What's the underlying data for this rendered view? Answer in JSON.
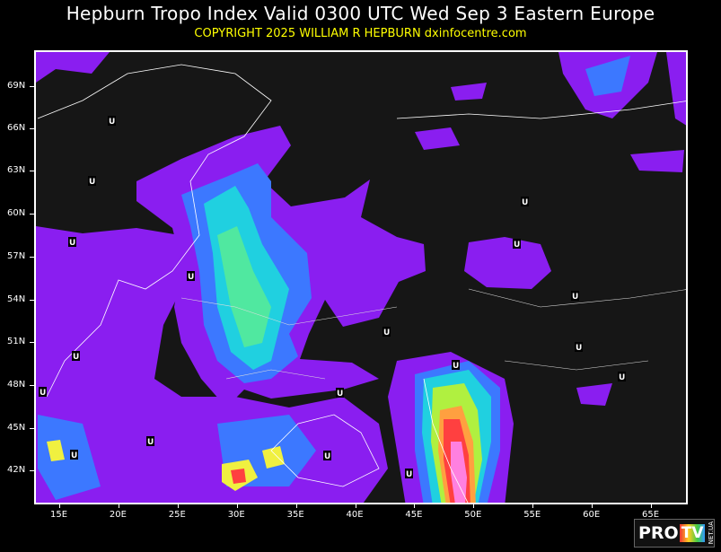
{
  "header": {
    "title": "Hepburn Tropo Index Valid 0300 UTC Wed Sep 3 Eastern Europe",
    "subtitle": "COPYRIGHT 2025   WILLIAM R HEPBURN   dxinfocentre.com"
  },
  "map": {
    "latitude_labels": [
      "69N",
      "66N",
      "63N",
      "60N",
      "57N",
      "54N",
      "51N",
      "48N",
      "45N",
      "42N"
    ],
    "longitude_labels": [
      "15E",
      "20E",
      "25E",
      "30E",
      "35E",
      "40E",
      "45E",
      "50E",
      "55E",
      "60E",
      "65E"
    ],
    "marker_label": "U",
    "colors": {
      "background": "#161616",
      "purple": "#8a1ef0",
      "blue": "#3c78ff",
      "cyan": "#20d0e0",
      "green": "#50e8a0",
      "yellow_green": "#b0f040",
      "yellow": "#f0f040",
      "orange": "#ffa040",
      "red": "#ff4040",
      "pink": "#ff80e0"
    }
  },
  "watermark": {
    "logo_text": "PRO TV NET.UA"
  }
}
